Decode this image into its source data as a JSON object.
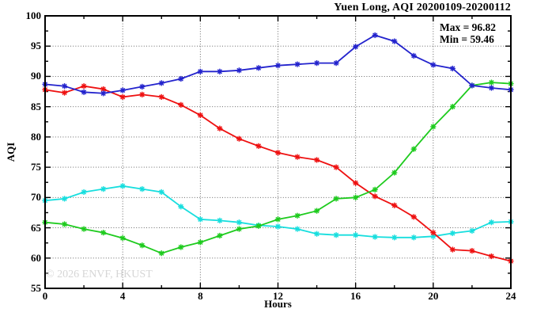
{
  "watermark": "© 2026 ENVF, HKUST",
  "chart_data": {
    "type": "line",
    "title": "Yuen Long, AQI 20200109-20200112",
    "xlabel": "Hours",
    "ylabel": "AQI",
    "xlim": [
      0,
      24
    ],
    "ylim": [
      55,
      100
    ],
    "x_ticks": [
      0,
      4,
      8,
      12,
      16,
      20,
      24
    ],
    "x_minor_step": 2,
    "y_ticks": [
      55,
      60,
      65,
      70,
      75,
      80,
      85,
      90,
      95,
      100
    ],
    "y_minor_step": 2.5,
    "grid": true,
    "legend": "none",
    "marker": "asterisk",
    "annotations": [
      "Max = 96.82",
      "Min = 59.46"
    ],
    "max_value": 96.82,
    "min_value": 59.46,
    "x": [
      0,
      1,
      2,
      3,
      4,
      5,
      6,
      7,
      8,
      9,
      10,
      11,
      12,
      13,
      14,
      15,
      16,
      17,
      18,
      19,
      20,
      21,
      22,
      23,
      24
    ],
    "series": [
      {
        "name": "cyan",
        "color": "#17dede",
        "values": [
          69.5,
          69.8,
          70.9,
          71.4,
          71.9,
          71.4,
          70.9,
          68.5,
          66.4,
          66.2,
          65.9,
          65.4,
          65.2,
          64.8,
          64.0,
          63.8,
          63.8,
          63.5,
          63.4,
          63.4,
          63.6,
          64.1,
          64.5,
          65.9,
          66.0
        ]
      },
      {
        "name": "red",
        "color": "#ee1111",
        "values": [
          87.8,
          87.3,
          88.4,
          87.9,
          86.6,
          87.0,
          86.6,
          85.3,
          83.6,
          81.4,
          79.7,
          78.5,
          77.4,
          76.7,
          76.2,
          75.0,
          72.4,
          70.2,
          68.7,
          66.8,
          64.2,
          61.4,
          61.2,
          60.3,
          59.5
        ]
      },
      {
        "name": "green",
        "color": "#1ecb1e",
        "values": [
          65.9,
          65.6,
          64.8,
          64.2,
          63.3,
          62.1,
          60.8,
          61.8,
          62.6,
          63.7,
          64.8,
          65.3,
          66.4,
          67.0,
          67.8,
          69.8,
          70.0,
          71.3,
          74.1,
          78.0,
          81.7,
          85.0,
          88.5,
          89.0,
          88.8
        ]
      },
      {
        "name": "blue",
        "color": "#2323cd",
        "values": [
          88.7,
          88.4,
          87.4,
          87.2,
          87.7,
          88.3,
          88.9,
          89.6,
          90.8,
          90.8,
          91.0,
          91.4,
          91.8,
          92.0,
          92.2,
          92.2,
          94.9,
          96.8,
          95.8,
          93.4,
          91.9,
          91.3,
          88.5,
          88.1,
          87.8
        ]
      }
    ]
  }
}
